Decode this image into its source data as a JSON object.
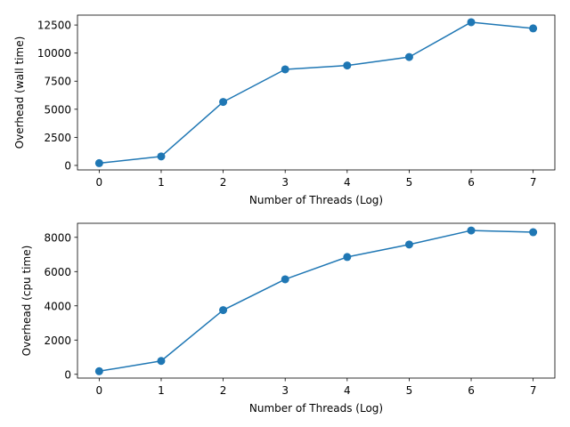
{
  "chart_data": [
    {
      "type": "line",
      "title": "",
      "xlabel": "Number of Threads (Log)",
      "ylabel": "Overhead (wall time)",
      "x": [
        0,
        1,
        2,
        3,
        4,
        5,
        6,
        7
      ],
      "series": [
        {
          "values": [
            200,
            800,
            5650,
            8550,
            8900,
            9650,
            12750,
            12200
          ],
          "color": "#1f77b4",
          "marker": "circle"
        }
      ],
      "xlim": [
        -0.35,
        7.35
      ],
      "ylim": [
        -400,
        13380
      ],
      "xticks": [
        0,
        1,
        2,
        3,
        4,
        5,
        6,
        7
      ],
      "yticks": [
        0,
        2500,
        5000,
        7500,
        10000,
        12500
      ],
      "grid": false
    },
    {
      "type": "line",
      "title": "",
      "xlabel": "Number of Threads (Log)",
      "ylabel": "Overhead (cpu time)",
      "x": [
        0,
        1,
        2,
        3,
        4,
        5,
        6,
        7
      ],
      "series": [
        {
          "values": [
            180,
            780,
            3750,
            5550,
            6850,
            7580,
            8400,
            8300
          ],
          "color": "#1f77b4",
          "marker": "circle"
        }
      ],
      "xlim": [
        -0.35,
        7.35
      ],
      "ylim": [
        -220,
        8820
      ],
      "xticks": [
        0,
        1,
        2,
        3,
        4,
        5,
        6,
        7
      ],
      "yticks": [
        0,
        2000,
        4000,
        6000,
        8000
      ],
      "grid": false
    }
  ]
}
